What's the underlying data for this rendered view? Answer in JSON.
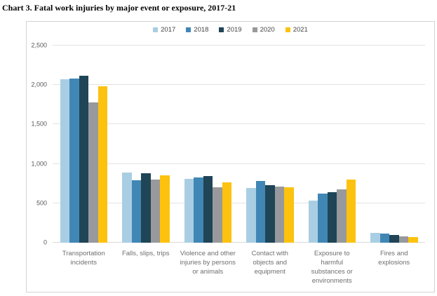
{
  "page": {
    "title": "Chart 3. Fatal work injuries by major event or exposure, 2017-21"
  },
  "chart_data": {
    "type": "bar",
    "title": "Chart 3. Fatal work injuries by major event or exposure, 2017-21",
    "xlabel": "",
    "ylabel": "",
    "ylim": [
      0,
      2500
    ],
    "ytick_interval": 500,
    "yticks": [
      "0",
      "500",
      "1,000",
      "1,500",
      "2,000",
      "2,500"
    ],
    "grid": true,
    "legend_position": "top-center",
    "categories": [
      "Transportation incidents",
      "Falls, slips, trips",
      "Violence and other injuries by persons or animals",
      "Contact with objects and equipment",
      "Exposure to harmful substances or environments",
      "Fires and explosions"
    ],
    "category_label_lines": [
      [
        "Transportation",
        "incidents"
      ],
      [
        "Falls, slips, trips"
      ],
      [
        "Violence and other",
        "injuries by persons",
        "or animals"
      ],
      [
        "Contact with",
        "objects and",
        "equipment"
      ],
      [
        "Exposure to",
        "harmful",
        "substances or",
        "environments"
      ],
      [
        "Fires and",
        "explosions"
      ]
    ],
    "series": [
      {
        "name": "2017",
        "color": "#a9cee3",
        "values": [
          2077,
          887,
          807,
          695,
          531,
          123
        ]
      },
      {
        "name": "2018",
        "color": "#4187b5",
        "values": [
          2080,
          791,
          828,
          786,
          621,
          115
        ]
      },
      {
        "name": "2019",
        "color": "#1f4557",
        "values": [
          2122,
          880,
          841,
          732,
          642,
          99
        ]
      },
      {
        "name": "2020",
        "color": "#98999c",
        "values": [
          1778,
          805,
          705,
          716,
          672,
          76
        ]
      },
      {
        "name": "2021",
        "color": "#fcc20e",
        "values": [
          1982,
          850,
          761,
          705,
          798,
          72
        ]
      }
    ]
  },
  "colors": {
    "box_border": "#d3d3d3",
    "gridline": "#e3e3e3",
    "baseline": "#d9d9d9",
    "axis_text": "#595959",
    "category_text": "#6e6e6e",
    "legend_text": "#444444",
    "title_text": "#000000"
  }
}
